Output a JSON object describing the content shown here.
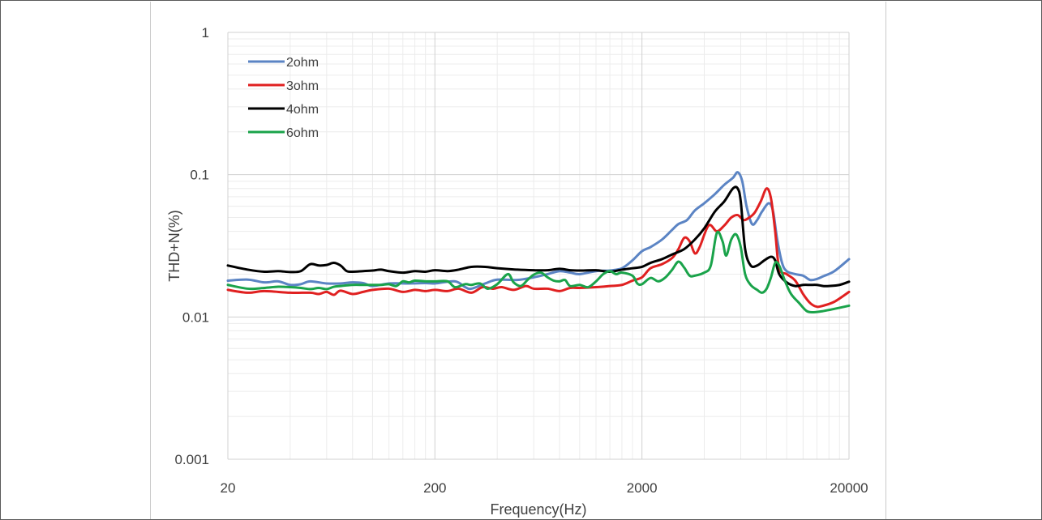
{
  "chart_data": {
    "type": "line",
    "title": "",
    "xlabel": "Frequency(Hz)",
    "ylabel": "THD+N(%)",
    "x_scale": "log",
    "y_scale": "log",
    "xlim": [
      20,
      20000
    ],
    "ylim": [
      0.001,
      1
    ],
    "x_ticks": [
      "20",
      "200",
      "2000",
      "20000"
    ],
    "y_ticks": [
      "1",
      "0.1",
      "0.01",
      "0.001"
    ],
    "grid": true,
    "legend_position": "top-left",
    "series": [
      {
        "name": "2ohm",
        "color": "#5b84c4",
        "points": [
          [
            20,
            0.018
          ],
          [
            25,
            0.0183
          ],
          [
            30,
            0.0175
          ],
          [
            35,
            0.0178
          ],
          [
            40,
            0.0168
          ],
          [
            45,
            0.017
          ],
          [
            50,
            0.0178
          ],
          [
            60,
            0.0172
          ],
          [
            70,
            0.0172
          ],
          [
            80,
            0.0175
          ],
          [
            90,
            0.0173
          ],
          [
            100,
            0.0165
          ],
          [
            120,
            0.0172
          ],
          [
            150,
            0.0172
          ],
          [
            180,
            0.0173
          ],
          [
            200,
            0.0172
          ],
          [
            250,
            0.0178
          ],
          [
            280,
            0.0162
          ],
          [
            300,
            0.0158
          ],
          [
            350,
            0.0172
          ],
          [
            400,
            0.0183
          ],
          [
            500,
            0.0182
          ],
          [
            600,
            0.019
          ],
          [
            700,
            0.02
          ],
          [
            800,
            0.021
          ],
          [
            900,
            0.0205
          ],
          [
            1000,
            0.02
          ],
          [
            1200,
            0.021
          ],
          [
            1400,
            0.0212
          ],
          [
            1600,
            0.022
          ],
          [
            1800,
            0.025
          ],
          [
            2000,
            0.029
          ],
          [
            2200,
            0.031
          ],
          [
            2500,
            0.035
          ],
          [
            2800,
            0.041
          ],
          [
            3000,
            0.045
          ],
          [
            3300,
            0.048
          ],
          [
            3600,
            0.056
          ],
          [
            4000,
            0.063
          ],
          [
            4500,
            0.073
          ],
          [
            5000,
            0.085
          ],
          [
            5500,
            0.095
          ],
          [
            5800,
            0.104
          ],
          [
            6100,
            0.09
          ],
          [
            6400,
            0.06
          ],
          [
            6800,
            0.045
          ],
          [
            7200,
            0.048
          ],
          [
            7600,
            0.055
          ],
          [
            8200,
            0.063
          ],
          [
            8600,
            0.055
          ],
          [
            9000,
            0.035
          ],
          [
            9500,
            0.024
          ],
          [
            10000,
            0.021
          ],
          [
            11000,
            0.02
          ],
          [
            12000,
            0.0195
          ],
          [
            13000,
            0.0182
          ],
          [
            14000,
            0.0185
          ],
          [
            15000,
            0.0193
          ],
          [
            17000,
            0.021
          ],
          [
            20000,
            0.0255
          ]
        ]
      },
      {
        "name": "3ohm",
        "color": "#e02020",
        "points": [
          [
            20,
            0.0155
          ],
          [
            25,
            0.0148
          ],
          [
            30,
            0.0152
          ],
          [
            40,
            0.0148
          ],
          [
            50,
            0.0148
          ],
          [
            55,
            0.0145
          ],
          [
            60,
            0.015
          ],
          [
            65,
            0.0143
          ],
          [
            70,
            0.0153
          ],
          [
            80,
            0.0145
          ],
          [
            90,
            0.015
          ],
          [
            100,
            0.0155
          ],
          [
            120,
            0.0158
          ],
          [
            140,
            0.015
          ],
          [
            160,
            0.0155
          ],
          [
            180,
            0.0152
          ],
          [
            200,
            0.0155
          ],
          [
            230,
            0.0152
          ],
          [
            260,
            0.0158
          ],
          [
            300,
            0.0148
          ],
          [
            340,
            0.0162
          ],
          [
            380,
            0.0158
          ],
          [
            420,
            0.0162
          ],
          [
            480,
            0.0155
          ],
          [
            550,
            0.0165
          ],
          [
            600,
            0.0158
          ],
          [
            700,
            0.0158
          ],
          [
            800,
            0.0152
          ],
          [
            900,
            0.016
          ],
          [
            1000,
            0.016
          ],
          [
            1200,
            0.0162
          ],
          [
            1400,
            0.0165
          ],
          [
            1600,
            0.0168
          ],
          [
            1800,
            0.018
          ],
          [
            2000,
            0.019
          ],
          [
            2200,
            0.022
          ],
          [
            2500,
            0.0235
          ],
          [
            2800,
            0.026
          ],
          [
            3000,
            0.03
          ],
          [
            3200,
            0.036
          ],
          [
            3400,
            0.034
          ],
          [
            3600,
            0.028
          ],
          [
            3800,
            0.031
          ],
          [
            4200,
            0.044
          ],
          [
            4600,
            0.04
          ],
          [
            5000,
            0.044
          ],
          [
            5400,
            0.05
          ],
          [
            5800,
            0.052
          ],
          [
            6200,
            0.048
          ],
          [
            6600,
            0.05
          ],
          [
            7000,
            0.054
          ],
          [
            7500,
            0.065
          ],
          [
            8000,
            0.08
          ],
          [
            8400,
            0.068
          ],
          [
            8800,
            0.04
          ],
          [
            9200,
            0.022
          ],
          [
            10000,
            0.02
          ],
          [
            11000,
            0.018
          ],
          [
            12000,
            0.0145
          ],
          [
            13000,
            0.0125
          ],
          [
            14000,
            0.0118
          ],
          [
            15000,
            0.012
          ],
          [
            17000,
            0.0128
          ],
          [
            20000,
            0.015
          ]
        ]
      },
      {
        "name": "4ohm",
        "color": "#000000",
        "points": [
          [
            20,
            0.023
          ],
          [
            25,
            0.0215
          ],
          [
            30,
            0.0208
          ],
          [
            35,
            0.021
          ],
          [
            40,
            0.0207
          ],
          [
            45,
            0.021
          ],
          [
            50,
            0.0235
          ],
          [
            55,
            0.023
          ],
          [
            60,
            0.0232
          ],
          [
            65,
            0.024
          ],
          [
            70,
            0.023
          ],
          [
            75,
            0.021
          ],
          [
            80,
            0.0208
          ],
          [
            90,
            0.021
          ],
          [
            100,
            0.0212
          ],
          [
            110,
            0.0215
          ],
          [
            120,
            0.021
          ],
          [
            140,
            0.0205
          ],
          [
            160,
            0.021
          ],
          [
            180,
            0.0208
          ],
          [
            200,
            0.0213
          ],
          [
            230,
            0.021
          ],
          [
            260,
            0.0215
          ],
          [
            300,
            0.0225
          ],
          [
            350,
            0.0225
          ],
          [
            400,
            0.022
          ],
          [
            500,
            0.0215
          ],
          [
            600,
            0.0213
          ],
          [
            700,
            0.0213
          ],
          [
            800,
            0.0218
          ],
          [
            900,
            0.0213
          ],
          [
            1000,
            0.0212
          ],
          [
            1200,
            0.0213
          ],
          [
            1400,
            0.0208
          ],
          [
            1600,
            0.0215
          ],
          [
            1800,
            0.022
          ],
          [
            2000,
            0.0225
          ],
          [
            2200,
            0.024
          ],
          [
            2500,
            0.0255
          ],
          [
            2800,
            0.0275
          ],
          [
            3200,
            0.03
          ],
          [
            3600,
            0.035
          ],
          [
            4000,
            0.042
          ],
          [
            4500,
            0.055
          ],
          [
            5000,
            0.065
          ],
          [
            5500,
            0.08
          ],
          [
            5800,
            0.08
          ],
          [
            6000,
            0.065
          ],
          [
            6300,
            0.03
          ],
          [
            6700,
            0.023
          ],
          [
            7200,
            0.023
          ],
          [
            7800,
            0.025
          ],
          [
            8400,
            0.0265
          ],
          [
            8800,
            0.025
          ],
          [
            9200,
            0.02
          ],
          [
            10000,
            0.0175
          ],
          [
            11000,
            0.0165
          ],
          [
            12000,
            0.0168
          ],
          [
            13000,
            0.0168
          ],
          [
            14000,
            0.0168
          ],
          [
            15000,
            0.0165
          ],
          [
            16000,
            0.0165
          ],
          [
            18000,
            0.0168
          ],
          [
            20000,
            0.0177
          ]
        ]
      },
      {
        "name": "6ohm",
        "color": "#1aa34a",
        "points": [
          [
            20,
            0.0168
          ],
          [
            25,
            0.0158
          ],
          [
            30,
            0.016
          ],
          [
            35,
            0.0163
          ],
          [
            40,
            0.0162
          ],
          [
            45,
            0.016
          ],
          [
            50,
            0.0157
          ],
          [
            55,
            0.016
          ],
          [
            60,
            0.0157
          ],
          [
            65,
            0.0163
          ],
          [
            70,
            0.0165
          ],
          [
            80,
            0.0168
          ],
          [
            90,
            0.0168
          ],
          [
            100,
            0.0168
          ],
          [
            110,
            0.0168
          ],
          [
            120,
            0.017
          ],
          [
            130,
            0.0165
          ],
          [
            140,
            0.0178
          ],
          [
            150,
            0.0175
          ],
          [
            160,
            0.018
          ],
          [
            180,
            0.0178
          ],
          [
            200,
            0.0178
          ],
          [
            230,
            0.0178
          ],
          [
            250,
            0.0162
          ],
          [
            280,
            0.017
          ],
          [
            300,
            0.0168
          ],
          [
            330,
            0.0172
          ],
          [
            360,
            0.0158
          ],
          [
            400,
            0.017
          ],
          [
            450,
            0.02
          ],
          [
            480,
            0.0175
          ],
          [
            520,
            0.0165
          ],
          [
            560,
            0.0182
          ],
          [
            600,
            0.0198
          ],
          [
            650,
            0.0205
          ],
          [
            700,
            0.019
          ],
          [
            750,
            0.018
          ],
          [
            800,
            0.0178
          ],
          [
            850,
            0.0182
          ],
          [
            900,
            0.0165
          ],
          [
            1000,
            0.0168
          ],
          [
            1100,
            0.0162
          ],
          [
            1200,
            0.0178
          ],
          [
            1300,
            0.02
          ],
          [
            1400,
            0.021
          ],
          [
            1500,
            0.02
          ],
          [
            1600,
            0.0205
          ],
          [
            1800,
            0.0195
          ],
          [
            1900,
            0.0172
          ],
          [
            2000,
            0.017
          ],
          [
            2200,
            0.0188
          ],
          [
            2400,
            0.0178
          ],
          [
            2600,
            0.019
          ],
          [
            2800,
            0.0215
          ],
          [
            3000,
            0.0245
          ],
          [
            3200,
            0.0222
          ],
          [
            3400,
            0.0195
          ],
          [
            3600,
            0.0195
          ],
          [
            4000,
            0.0205
          ],
          [
            4300,
            0.023
          ],
          [
            4600,
            0.039
          ],
          [
            4900,
            0.034
          ],
          [
            5100,
            0.027
          ],
          [
            5400,
            0.035
          ],
          [
            5700,
            0.038
          ],
          [
            6000,
            0.031
          ],
          [
            6300,
            0.02
          ],
          [
            6700,
            0.0168
          ],
          [
            7200,
            0.0155
          ],
          [
            7600,
            0.0148
          ],
          [
            8000,
            0.0158
          ],
          [
            8400,
            0.019
          ],
          [
            8800,
            0.024
          ],
          [
            9200,
            0.023
          ],
          [
            9800,
            0.018
          ],
          [
            10500,
            0.0145
          ],
          [
            11500,
            0.0125
          ],
          [
            12500,
            0.011
          ],
          [
            13500,
            0.0108
          ],
          [
            15000,
            0.011
          ],
          [
            17000,
            0.0114
          ],
          [
            20000,
            0.012
          ]
        ]
      }
    ]
  }
}
